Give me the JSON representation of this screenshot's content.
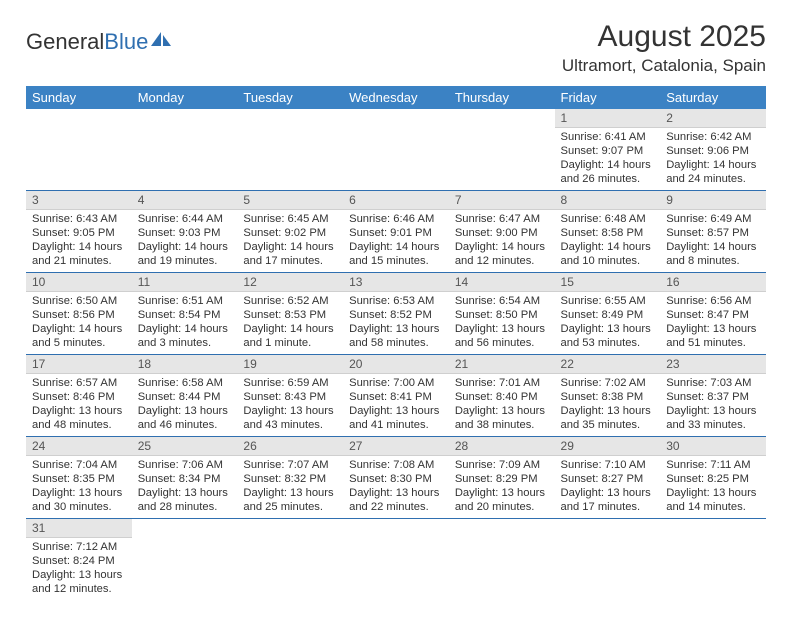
{
  "logo": {
    "brand_a": "General",
    "brand_b": "Blue"
  },
  "header": {
    "title": "August 2025",
    "subtitle": "Ultramort, Catalonia, Spain"
  },
  "colors": {
    "header_bg": "#3b82c4",
    "header_text": "#ffffff",
    "daybar_bg": "#e6e6e6",
    "row_divider": "#2f6fb0",
    "brand_blue": "#2f6fb0"
  },
  "day_headers": [
    "Sunday",
    "Monday",
    "Tuesday",
    "Wednesday",
    "Thursday",
    "Friday",
    "Saturday"
  ],
  "weeks": [
    [
      {
        "n": "",
        "sr": "",
        "ss": "",
        "dl": ""
      },
      {
        "n": "",
        "sr": "",
        "ss": "",
        "dl": ""
      },
      {
        "n": "",
        "sr": "",
        "ss": "",
        "dl": ""
      },
      {
        "n": "",
        "sr": "",
        "ss": "",
        "dl": ""
      },
      {
        "n": "",
        "sr": "",
        "ss": "",
        "dl": ""
      },
      {
        "n": "1",
        "sr": "Sunrise: 6:41 AM",
        "ss": "Sunset: 9:07 PM",
        "dl": "Daylight: 14 hours and 26 minutes."
      },
      {
        "n": "2",
        "sr": "Sunrise: 6:42 AM",
        "ss": "Sunset: 9:06 PM",
        "dl": "Daylight: 14 hours and 24 minutes."
      }
    ],
    [
      {
        "n": "3",
        "sr": "Sunrise: 6:43 AM",
        "ss": "Sunset: 9:05 PM",
        "dl": "Daylight: 14 hours and 21 minutes."
      },
      {
        "n": "4",
        "sr": "Sunrise: 6:44 AM",
        "ss": "Sunset: 9:03 PM",
        "dl": "Daylight: 14 hours and 19 minutes."
      },
      {
        "n": "5",
        "sr": "Sunrise: 6:45 AM",
        "ss": "Sunset: 9:02 PM",
        "dl": "Daylight: 14 hours and 17 minutes."
      },
      {
        "n": "6",
        "sr": "Sunrise: 6:46 AM",
        "ss": "Sunset: 9:01 PM",
        "dl": "Daylight: 14 hours and 15 minutes."
      },
      {
        "n": "7",
        "sr": "Sunrise: 6:47 AM",
        "ss": "Sunset: 9:00 PM",
        "dl": "Daylight: 14 hours and 12 minutes."
      },
      {
        "n": "8",
        "sr": "Sunrise: 6:48 AM",
        "ss": "Sunset: 8:58 PM",
        "dl": "Daylight: 14 hours and 10 minutes."
      },
      {
        "n": "9",
        "sr": "Sunrise: 6:49 AM",
        "ss": "Sunset: 8:57 PM",
        "dl": "Daylight: 14 hours and 8 minutes."
      }
    ],
    [
      {
        "n": "10",
        "sr": "Sunrise: 6:50 AM",
        "ss": "Sunset: 8:56 PM",
        "dl": "Daylight: 14 hours and 5 minutes."
      },
      {
        "n": "11",
        "sr": "Sunrise: 6:51 AM",
        "ss": "Sunset: 8:54 PM",
        "dl": "Daylight: 14 hours and 3 minutes."
      },
      {
        "n": "12",
        "sr": "Sunrise: 6:52 AM",
        "ss": "Sunset: 8:53 PM",
        "dl": "Daylight: 14 hours and 1 minute."
      },
      {
        "n": "13",
        "sr": "Sunrise: 6:53 AM",
        "ss": "Sunset: 8:52 PM",
        "dl": "Daylight: 13 hours and 58 minutes."
      },
      {
        "n": "14",
        "sr": "Sunrise: 6:54 AM",
        "ss": "Sunset: 8:50 PM",
        "dl": "Daylight: 13 hours and 56 minutes."
      },
      {
        "n": "15",
        "sr": "Sunrise: 6:55 AM",
        "ss": "Sunset: 8:49 PM",
        "dl": "Daylight: 13 hours and 53 minutes."
      },
      {
        "n": "16",
        "sr": "Sunrise: 6:56 AM",
        "ss": "Sunset: 8:47 PM",
        "dl": "Daylight: 13 hours and 51 minutes."
      }
    ],
    [
      {
        "n": "17",
        "sr": "Sunrise: 6:57 AM",
        "ss": "Sunset: 8:46 PM",
        "dl": "Daylight: 13 hours and 48 minutes."
      },
      {
        "n": "18",
        "sr": "Sunrise: 6:58 AM",
        "ss": "Sunset: 8:44 PM",
        "dl": "Daylight: 13 hours and 46 minutes."
      },
      {
        "n": "19",
        "sr": "Sunrise: 6:59 AM",
        "ss": "Sunset: 8:43 PM",
        "dl": "Daylight: 13 hours and 43 minutes."
      },
      {
        "n": "20",
        "sr": "Sunrise: 7:00 AM",
        "ss": "Sunset: 8:41 PM",
        "dl": "Daylight: 13 hours and 41 minutes."
      },
      {
        "n": "21",
        "sr": "Sunrise: 7:01 AM",
        "ss": "Sunset: 8:40 PM",
        "dl": "Daylight: 13 hours and 38 minutes."
      },
      {
        "n": "22",
        "sr": "Sunrise: 7:02 AM",
        "ss": "Sunset: 8:38 PM",
        "dl": "Daylight: 13 hours and 35 minutes."
      },
      {
        "n": "23",
        "sr": "Sunrise: 7:03 AM",
        "ss": "Sunset: 8:37 PM",
        "dl": "Daylight: 13 hours and 33 minutes."
      }
    ],
    [
      {
        "n": "24",
        "sr": "Sunrise: 7:04 AM",
        "ss": "Sunset: 8:35 PM",
        "dl": "Daylight: 13 hours and 30 minutes."
      },
      {
        "n": "25",
        "sr": "Sunrise: 7:06 AM",
        "ss": "Sunset: 8:34 PM",
        "dl": "Daylight: 13 hours and 28 minutes."
      },
      {
        "n": "26",
        "sr": "Sunrise: 7:07 AM",
        "ss": "Sunset: 8:32 PM",
        "dl": "Daylight: 13 hours and 25 minutes."
      },
      {
        "n": "27",
        "sr": "Sunrise: 7:08 AM",
        "ss": "Sunset: 8:30 PM",
        "dl": "Daylight: 13 hours and 22 minutes."
      },
      {
        "n": "28",
        "sr": "Sunrise: 7:09 AM",
        "ss": "Sunset: 8:29 PM",
        "dl": "Daylight: 13 hours and 20 minutes."
      },
      {
        "n": "29",
        "sr": "Sunrise: 7:10 AM",
        "ss": "Sunset: 8:27 PM",
        "dl": "Daylight: 13 hours and 17 minutes."
      },
      {
        "n": "30",
        "sr": "Sunrise: 7:11 AM",
        "ss": "Sunset: 8:25 PM",
        "dl": "Daylight: 13 hours and 14 minutes."
      }
    ],
    [
      {
        "n": "31",
        "sr": "Sunrise: 7:12 AM",
        "ss": "Sunset: 8:24 PM",
        "dl": "Daylight: 13 hours and 12 minutes."
      },
      {
        "n": "",
        "sr": "",
        "ss": "",
        "dl": ""
      },
      {
        "n": "",
        "sr": "",
        "ss": "",
        "dl": ""
      },
      {
        "n": "",
        "sr": "",
        "ss": "",
        "dl": ""
      },
      {
        "n": "",
        "sr": "",
        "ss": "",
        "dl": ""
      },
      {
        "n": "",
        "sr": "",
        "ss": "",
        "dl": ""
      },
      {
        "n": "",
        "sr": "",
        "ss": "",
        "dl": ""
      }
    ]
  ]
}
